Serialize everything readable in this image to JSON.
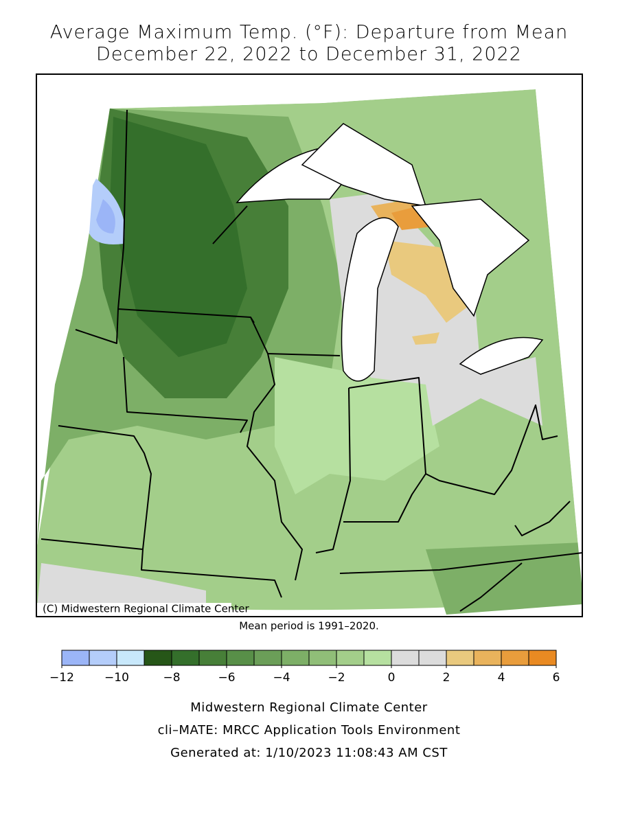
{
  "title": [
    "Average Maximum Temp. (°F): Departure from Mean",
    "December 22, 2022 to December 31, 2022"
  ],
  "map": {
    "credit": "(C) Midwestern Regional Climate Center",
    "note": "Mean period is 1991–2020."
  },
  "legend": {
    "bins": [
      -12,
      -11,
      -10,
      -9,
      -8,
      -7,
      -6,
      -5,
      -4,
      -3,
      -2,
      -1,
      0,
      1,
      2,
      3,
      4,
      5,
      6
    ],
    "colors": [
      "#9bb5f7",
      "#b4cdfa",
      "#c8e8fb",
      "#265618",
      "#346f2b",
      "#477f38",
      "#588f48",
      "#6b9e58",
      "#7daf67",
      "#90be78",
      "#a3ce8a",
      "#b6e0a0",
      "#dcdcdc",
      "#dcdcdc",
      "#e9c97e",
      "#e9b35c",
      "#e99d3c",
      "#e98a22",
      "#e87800"
    ],
    "xlim": [
      -12,
      6
    ],
    "ticks": [
      {
        "value": -12,
        "label": "−12"
      },
      {
        "value": -10,
        "label": "−10"
      },
      {
        "value": -8,
        "label": "−8"
      },
      {
        "value": -6,
        "label": "−6"
      },
      {
        "value": -4,
        "label": "−4"
      },
      {
        "value": -2,
        "label": "−2"
      },
      0,
      2,
      4,
      6
    ]
  },
  "footer": [
    "Midwestern Regional Climate Center",
    "cli–MATE: MRCC Application Tools Environment",
    "Generated at: 1/10/2023 11:08:43 AM CST"
  ]
}
